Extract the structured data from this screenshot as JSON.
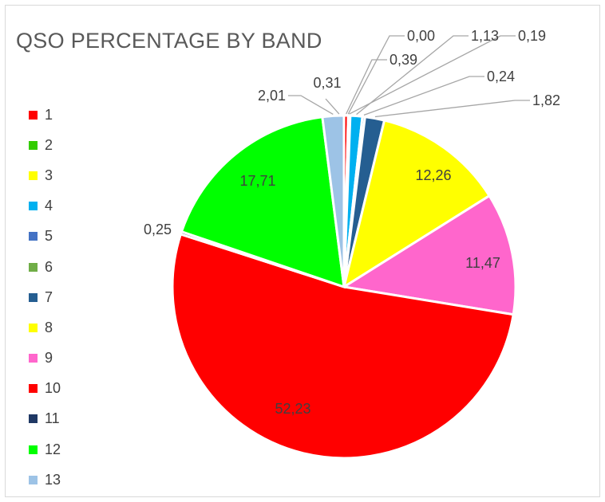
{
  "chart_data": {
    "type": "pie",
    "title": "QSO PERCENTAGE BY BAND",
    "legend_position": "left",
    "categories": [
      "1",
      "2",
      "3",
      "4",
      "5",
      "6",
      "7",
      "8",
      "9",
      "10",
      "11",
      "12",
      "13"
    ],
    "values": [
      0.39,
      0.0,
      0.19,
      1.13,
      0.24,
      0.0,
      1.82,
      12.26,
      11.47,
      52.23,
      0.25,
      17.71,
      2.01
    ],
    "labels": [
      "0,39",
      "0,00",
      "0,19",
      "1,13",
      "0,24",
      "",
      "1,82",
      "12,26",
      "11,47",
      "52,23",
      "0,25",
      "17,71",
      "2,01"
    ],
    "colors": [
      "#ff0000",
      "#33cc00",
      "#ffff00",
      "#00b0f0",
      "#4472c4",
      "#70ad47",
      "#255e91",
      "#ffff00",
      "#ff66cc",
      "#ff0000",
      "#1f3864",
      "#00ff00",
      "#9dc3e6"
    ],
    "extra_labels": [
      "0,31"
    ]
  }
}
